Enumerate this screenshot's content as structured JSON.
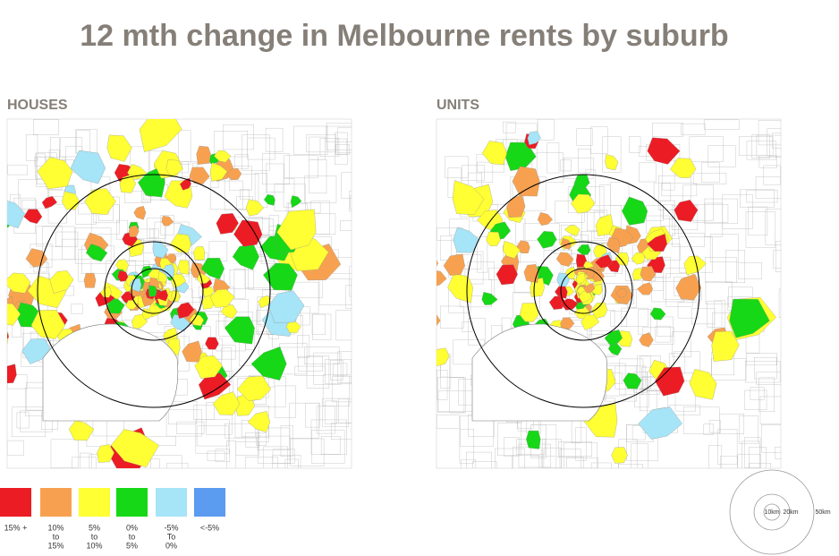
{
  "title": "12 mth change in Melbourne rents by suburb",
  "panels": [
    {
      "label": "HOUSES"
    },
    {
      "label": "UNITS"
    }
  ],
  "legend": {
    "items": [
      {
        "color": "#ec1c24",
        "label": [
          "15% +"
        ]
      },
      {
        "color": "#f7a150",
        "label": [
          "10%",
          "to",
          "15%"
        ]
      },
      {
        "color": "#ffff33",
        "label": [
          "5%",
          "to",
          "10%"
        ]
      },
      {
        "color": "#16d816",
        "label": [
          "0%",
          "to",
          "5%"
        ]
      },
      {
        "color": "#a6e4f7",
        "label": [
          "-5%",
          "To",
          "0%"
        ]
      },
      {
        "color": "#5b9bf0",
        "label": [
          "<-5%"
        ]
      }
    ]
  },
  "scale": {
    "labels": [
      "10km",
      "20km",
      "50km"
    ]
  }
}
